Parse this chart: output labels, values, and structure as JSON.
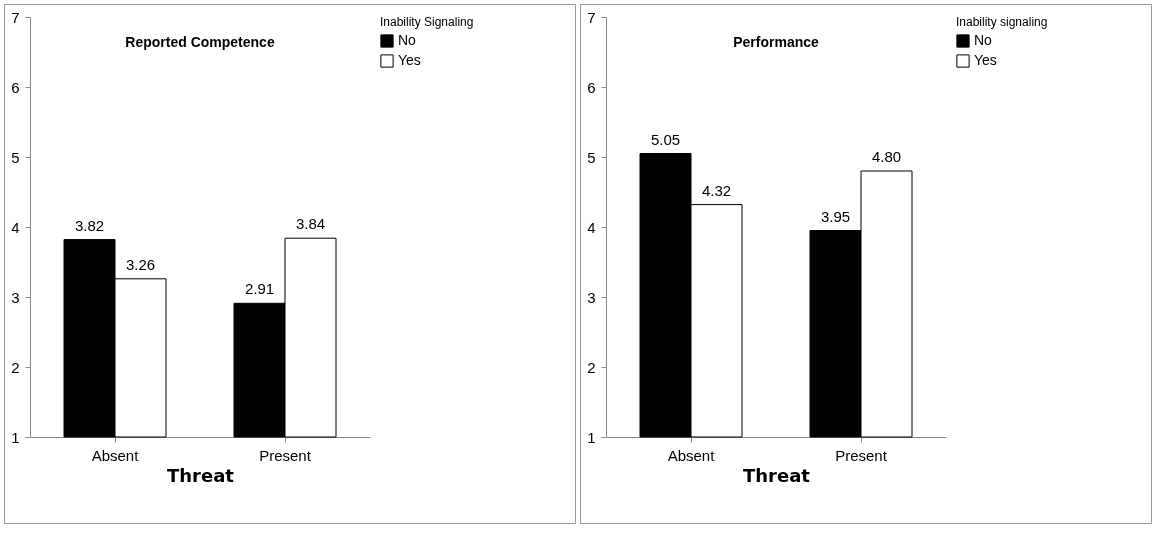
{
  "chart_data": [
    {
      "type": "bar",
      "title": "Reported Competence",
      "xlabel": "Threat",
      "legend_title": "Inability Signaling",
      "categories": [
        "Absent",
        "Present"
      ],
      "series": [
        {
          "name": "No",
          "color": "#000000",
          "values": [
            3.82,
            2.91
          ],
          "value_labels": [
            "3.82",
            "2.91"
          ]
        },
        {
          "name": "Yes",
          "color": "#ffffff",
          "values": [
            3.26,
            3.84
          ],
          "value_labels": [
            "3.26",
            "3.84"
          ]
        }
      ],
      "ylim": [
        1,
        7
      ],
      "yticks": [
        1,
        2,
        3,
        4,
        5,
        6,
        7
      ],
      "legend": "right",
      "grid": false
    },
    {
      "type": "bar",
      "title": "Performance",
      "xlabel": "Threat",
      "legend_title": "Inability signaling",
      "categories": [
        "Absent",
        "Present"
      ],
      "series": [
        {
          "name": "No",
          "color": "#000000",
          "values": [
            5.05,
            3.95
          ],
          "value_labels": [
            "5.05",
            "3.95"
          ]
        },
        {
          "name": "Yes",
          "color": "#ffffff",
          "values": [
            4.32,
            4.8
          ],
          "value_labels": [
            "4.32",
            "4.80"
          ]
        }
      ],
      "ylim": [
        1,
        7
      ],
      "yticks": [
        1,
        2,
        3,
        4,
        5,
        6,
        7
      ],
      "legend": "right",
      "grid": false
    }
  ]
}
